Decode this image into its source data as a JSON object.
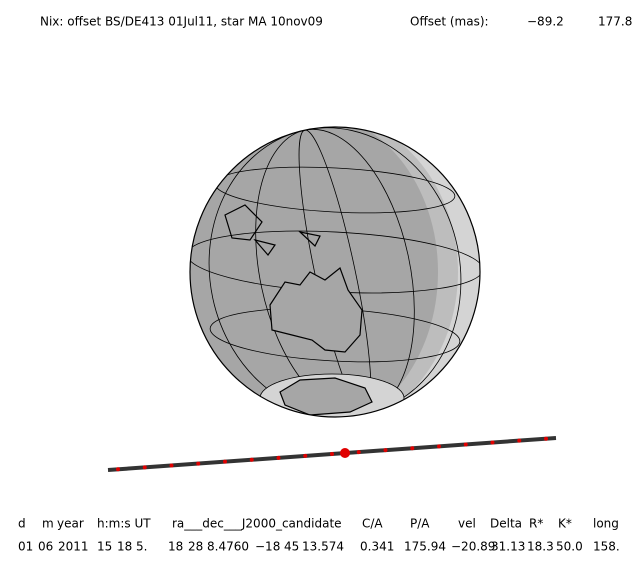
{
  "header": {
    "title": "Nix: offset BS/DE413 01Jul11, star MA 10nov09",
    "offset_label": "Offset (mas):",
    "offset_values": [
      "−89.2",
      "177.8"
    ]
  },
  "table": {
    "headers": [
      "d",
      "m",
      "year",
      "h:m:s UT",
      "ra___dec___J2000_candidate",
      "C/A",
      "P/A",
      "vel",
      "Delta",
      "R*",
      "K*",
      "long"
    ],
    "values": [
      "01",
      "06",
      "2011",
      "15",
      "18",
      "5.",
      "18",
      "28",
      "8.4760",
      "−18",
      "45",
      "13.574",
      "0.341",
      "175.94",
      "−20.89",
      "31.13",
      "18.3",
      "50.0",
      "158."
    ]
  }
}
